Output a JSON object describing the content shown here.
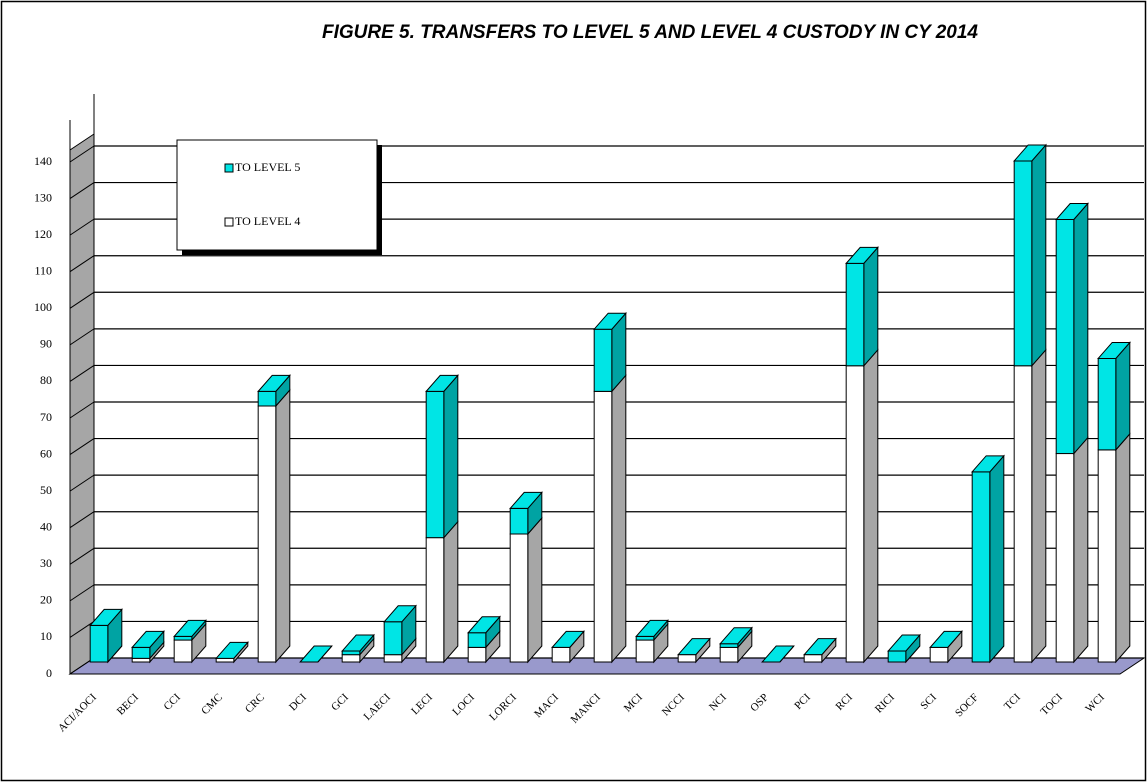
{
  "chart_data": {
    "type": "bar3d_stacked",
    "title": "FIGURE 5. TRANSFERS TO LEVEL 5 AND LEVEL 4 CUSTODY IN CY 2014",
    "categories": [
      "ACI/AOCI",
      "BECI",
      "CCI",
      "CMC",
      "CRC",
      "DCI",
      "GCI",
      "LAECI",
      "LECI",
      "LOCI",
      "LORCI",
      "MACI",
      "MANCI",
      "MCI",
      "NCCI",
      "NCI",
      "OSP",
      "PCI",
      "RCI",
      "RICI",
      "SCI",
      "SOCF",
      "TCI",
      "TOCI",
      "WCI"
    ],
    "series": [
      {
        "name": "TO LEVEL 4",
        "color": "#ffffff",
        "side": "#a6a6a6",
        "values": [
          0,
          1,
          6,
          1,
          70,
          0,
          2,
          2,
          34,
          4,
          35,
          4,
          74,
          6,
          2,
          4,
          0,
          2,
          81,
          0,
          4,
          0,
          81,
          57,
          58
        ]
      },
      {
        "name": "TO LEVEL 5",
        "color": "#00e5e5",
        "side": "#00a3a3",
        "values": [
          10,
          3,
          1,
          0,
          4,
          0,
          1,
          9,
          40,
          4,
          7,
          0,
          17,
          1,
          0,
          1,
          0,
          0,
          28,
          3,
          0,
          52,
          56,
          64,
          25
        ]
      }
    ],
    "ylim": [
      0,
      140
    ],
    "yticks": [
      0,
      10,
      20,
      30,
      40,
      50,
      60,
      70,
      80,
      90,
      100,
      110,
      120,
      130,
      140
    ],
    "grid": true,
    "legend": "upper left"
  }
}
